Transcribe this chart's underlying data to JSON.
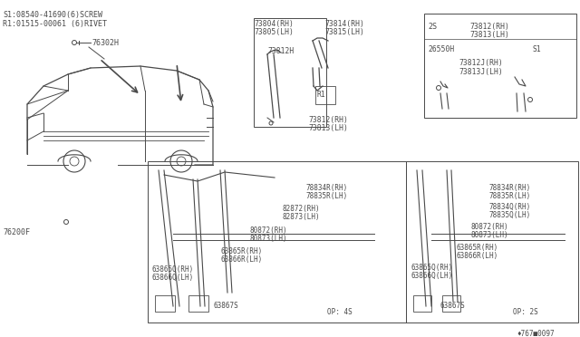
{
  "bg_color": "#ffffff",
  "line_color": "#4a4a4a",
  "text_color": "#4a4a4a",
  "fig_width": 6.4,
  "fig_height": 3.72,
  "dpi": 100,
  "top_left_notes": [
    "S1:08540-41690(6)SCREW",
    "R1:01515-00061 (6)RIVET"
  ],
  "part_76302H": "76302H",
  "part_76200F": "76200F",
  "bottom_watermark": "♦767■0097",
  "center_labels": {
    "l73804": "73804(RH)",
    "l73805": "73805(LH)",
    "l73812H": "73812H",
    "l73814": "73814(RH)",
    "l73815": "73815(LH)",
    "l73812": "73812(RH)",
    "l73813": "73813(LH)",
    "lR1": "R1"
  },
  "top_right_box": {
    "l2S": "2S",
    "lS1": "S1",
    "l26550H": "26550H",
    "l73812RH": "73812(RH)",
    "l73813LH": "73813(LH)",
    "l73812JRH": "73812J(RH)",
    "l73813JLH": "73813J(LH)"
  },
  "left_door_box": {
    "op": "OP: 4S",
    "p0": "78834R(RH)",
    "p1": "78835R(LH)",
    "p2": "82872(RH)",
    "p3": "82873(LH)",
    "p4": "80872(RH)",
    "p5": "80873(LH)",
    "p6": "63865R(RH)",
    "p7": "63866R(LH)",
    "p8": "63865Q(RH)",
    "p9": "63866Q(LH)",
    "p10": "63867S"
  },
  "right_door_box": {
    "op": "OP: 2S",
    "p0": "78834R(RH)",
    "p1": "78835R(LH)",
    "p2": "78834Q(RH)",
    "p3": "78835Q(LH)",
    "p4": "80872(RH)",
    "p5": "80873(LH)",
    "p6": "63865R(RH)",
    "p7": "63866R(LH)",
    "p8": "63865Q(RH)",
    "p9": "63866Q(LH)",
    "p10": "63867S"
  }
}
